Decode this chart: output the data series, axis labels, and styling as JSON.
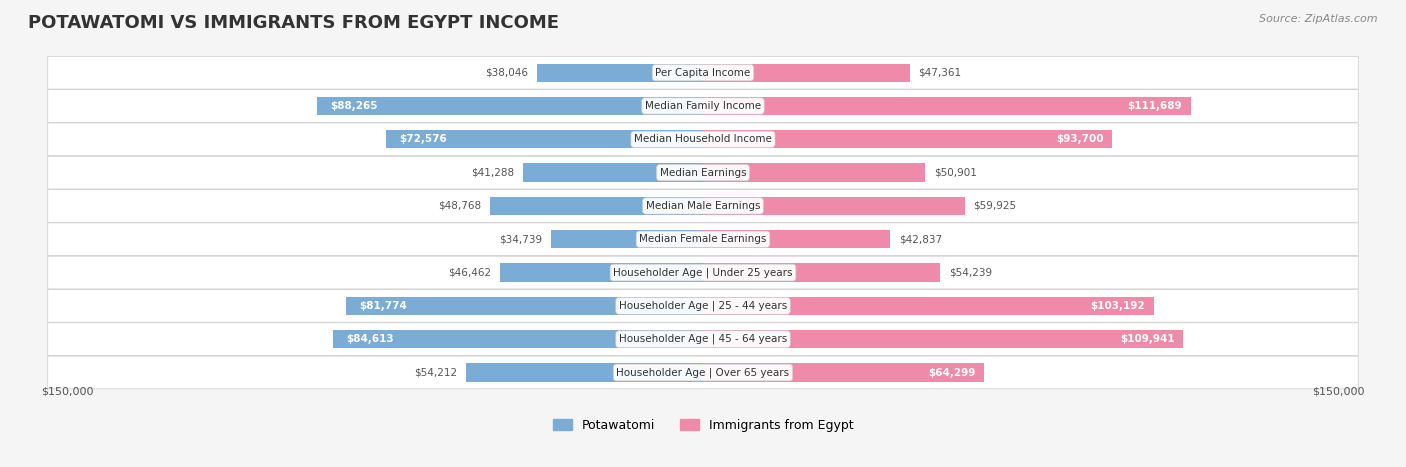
{
  "title": "POTAWATOMI VS IMMIGRANTS FROM EGYPT INCOME",
  "source": "Source: ZipAtlas.com",
  "categories": [
    "Per Capita Income",
    "Median Family Income",
    "Median Household Income",
    "Median Earnings",
    "Median Male Earnings",
    "Median Female Earnings",
    "Householder Age | Under 25 years",
    "Householder Age | 25 - 44 years",
    "Householder Age | 45 - 64 years",
    "Householder Age | Over 65 years"
  ],
  "left_values": [
    38046,
    88265,
    72576,
    41288,
    48768,
    34739,
    46462,
    81774,
    84613,
    54212
  ],
  "right_values": [
    47361,
    111689,
    93700,
    50901,
    59925,
    42837,
    54239,
    103192,
    109941,
    64299
  ],
  "left_labels": [
    "$38,046",
    "$88,265",
    "$72,576",
    "$41,288",
    "$48,768",
    "$34,739",
    "$46,462",
    "$81,774",
    "$84,613",
    "$54,212"
  ],
  "right_labels": [
    "$47,361",
    "$111,689",
    "$93,700",
    "$50,901",
    "$59,925",
    "$42,837",
    "$54,239",
    "$103,192",
    "$109,941",
    "$64,299"
  ],
  "max_value": 150000,
  "left_color": "#7aacd6",
  "right_color": "#f08aaa",
  "left_color_dark": "#5b9bc7",
  "right_color_dark": "#e8688e",
  "label_color_left": "#555555",
  "label_color_right_dark": "#ffffff",
  "label_color_right_light": "#555555",
  "bg_color": "#f5f5f5",
  "row_bg_color": "#ffffff",
  "legend_left": "Potawatomi",
  "legend_right": "Immigrants from Egypt",
  "x_label_left": "$150,000",
  "x_label_right": "$150,000"
}
